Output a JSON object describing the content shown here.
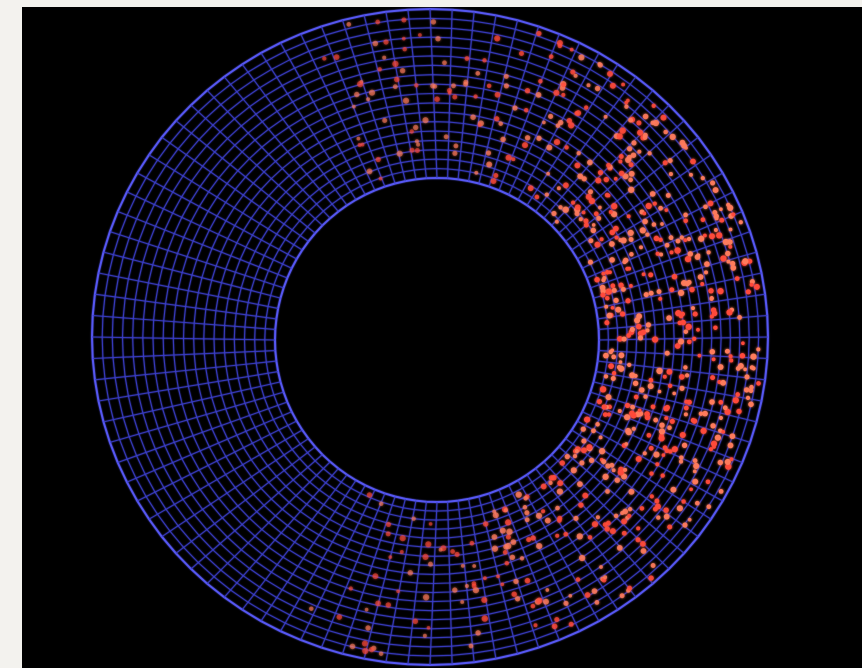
{
  "image": {
    "description_free": true,
    "colors": {
      "frame": "#f3f2ee",
      "background": "#000000",
      "mesh": "#3b3ec9",
      "mesh_glow": "#5a5cff",
      "particle": "#ff4a3a",
      "particle_core": "#ff7b5c"
    },
    "mesh": {
      "radial_segments": 96,
      "ring_count": 18
    },
    "particles": {
      "count": 720,
      "concentration_angle_deg": 0,
      "spread_deg": 75
    }
  }
}
